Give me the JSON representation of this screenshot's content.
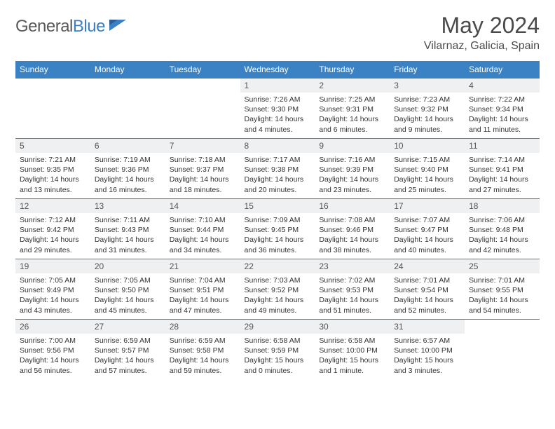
{
  "logo": {
    "part1": "General",
    "part2": "Blue"
  },
  "title": "May 2024",
  "location": "Vilarnaz, Galicia, Spain",
  "colors": {
    "header_bg": "#3b82c4",
    "header_text": "#ffffff",
    "daynum_bg": "#eef0f2",
    "border": "#3b82c4",
    "title_color": "#4a4a4a",
    "logo_gray": "#5a5a5a",
    "logo_blue": "#3b7fc4"
  },
  "day_names": [
    "Sunday",
    "Monday",
    "Tuesday",
    "Wednesday",
    "Thursday",
    "Friday",
    "Saturday"
  ],
  "weeks": [
    [
      {
        "n": "",
        "sr": "",
        "ss": "",
        "dl": ""
      },
      {
        "n": "",
        "sr": "",
        "ss": "",
        "dl": ""
      },
      {
        "n": "",
        "sr": "",
        "ss": "",
        "dl": ""
      },
      {
        "n": "1",
        "sr": "Sunrise: 7:26 AM",
        "ss": "Sunset: 9:30 PM",
        "dl": "Daylight: 14 hours and 4 minutes."
      },
      {
        "n": "2",
        "sr": "Sunrise: 7:25 AM",
        "ss": "Sunset: 9:31 PM",
        "dl": "Daylight: 14 hours and 6 minutes."
      },
      {
        "n": "3",
        "sr": "Sunrise: 7:23 AM",
        "ss": "Sunset: 9:32 PM",
        "dl": "Daylight: 14 hours and 9 minutes."
      },
      {
        "n": "4",
        "sr": "Sunrise: 7:22 AM",
        "ss": "Sunset: 9:34 PM",
        "dl": "Daylight: 14 hours and 11 minutes."
      }
    ],
    [
      {
        "n": "5",
        "sr": "Sunrise: 7:21 AM",
        "ss": "Sunset: 9:35 PM",
        "dl": "Daylight: 14 hours and 13 minutes."
      },
      {
        "n": "6",
        "sr": "Sunrise: 7:19 AM",
        "ss": "Sunset: 9:36 PM",
        "dl": "Daylight: 14 hours and 16 minutes."
      },
      {
        "n": "7",
        "sr": "Sunrise: 7:18 AM",
        "ss": "Sunset: 9:37 PM",
        "dl": "Daylight: 14 hours and 18 minutes."
      },
      {
        "n": "8",
        "sr": "Sunrise: 7:17 AM",
        "ss": "Sunset: 9:38 PM",
        "dl": "Daylight: 14 hours and 20 minutes."
      },
      {
        "n": "9",
        "sr": "Sunrise: 7:16 AM",
        "ss": "Sunset: 9:39 PM",
        "dl": "Daylight: 14 hours and 23 minutes."
      },
      {
        "n": "10",
        "sr": "Sunrise: 7:15 AM",
        "ss": "Sunset: 9:40 PM",
        "dl": "Daylight: 14 hours and 25 minutes."
      },
      {
        "n": "11",
        "sr": "Sunrise: 7:14 AM",
        "ss": "Sunset: 9:41 PM",
        "dl": "Daylight: 14 hours and 27 minutes."
      }
    ],
    [
      {
        "n": "12",
        "sr": "Sunrise: 7:12 AM",
        "ss": "Sunset: 9:42 PM",
        "dl": "Daylight: 14 hours and 29 minutes."
      },
      {
        "n": "13",
        "sr": "Sunrise: 7:11 AM",
        "ss": "Sunset: 9:43 PM",
        "dl": "Daylight: 14 hours and 31 minutes."
      },
      {
        "n": "14",
        "sr": "Sunrise: 7:10 AM",
        "ss": "Sunset: 9:44 PM",
        "dl": "Daylight: 14 hours and 34 minutes."
      },
      {
        "n": "15",
        "sr": "Sunrise: 7:09 AM",
        "ss": "Sunset: 9:45 PM",
        "dl": "Daylight: 14 hours and 36 minutes."
      },
      {
        "n": "16",
        "sr": "Sunrise: 7:08 AM",
        "ss": "Sunset: 9:46 PM",
        "dl": "Daylight: 14 hours and 38 minutes."
      },
      {
        "n": "17",
        "sr": "Sunrise: 7:07 AM",
        "ss": "Sunset: 9:47 PM",
        "dl": "Daylight: 14 hours and 40 minutes."
      },
      {
        "n": "18",
        "sr": "Sunrise: 7:06 AM",
        "ss": "Sunset: 9:48 PM",
        "dl": "Daylight: 14 hours and 42 minutes."
      }
    ],
    [
      {
        "n": "19",
        "sr": "Sunrise: 7:05 AM",
        "ss": "Sunset: 9:49 PM",
        "dl": "Daylight: 14 hours and 43 minutes."
      },
      {
        "n": "20",
        "sr": "Sunrise: 7:05 AM",
        "ss": "Sunset: 9:50 PM",
        "dl": "Daylight: 14 hours and 45 minutes."
      },
      {
        "n": "21",
        "sr": "Sunrise: 7:04 AM",
        "ss": "Sunset: 9:51 PM",
        "dl": "Daylight: 14 hours and 47 minutes."
      },
      {
        "n": "22",
        "sr": "Sunrise: 7:03 AM",
        "ss": "Sunset: 9:52 PM",
        "dl": "Daylight: 14 hours and 49 minutes."
      },
      {
        "n": "23",
        "sr": "Sunrise: 7:02 AM",
        "ss": "Sunset: 9:53 PM",
        "dl": "Daylight: 14 hours and 51 minutes."
      },
      {
        "n": "24",
        "sr": "Sunrise: 7:01 AM",
        "ss": "Sunset: 9:54 PM",
        "dl": "Daylight: 14 hours and 52 minutes."
      },
      {
        "n": "25",
        "sr": "Sunrise: 7:01 AM",
        "ss": "Sunset: 9:55 PM",
        "dl": "Daylight: 14 hours and 54 minutes."
      }
    ],
    [
      {
        "n": "26",
        "sr": "Sunrise: 7:00 AM",
        "ss": "Sunset: 9:56 PM",
        "dl": "Daylight: 14 hours and 56 minutes."
      },
      {
        "n": "27",
        "sr": "Sunrise: 6:59 AM",
        "ss": "Sunset: 9:57 PM",
        "dl": "Daylight: 14 hours and 57 minutes."
      },
      {
        "n": "28",
        "sr": "Sunrise: 6:59 AM",
        "ss": "Sunset: 9:58 PM",
        "dl": "Daylight: 14 hours and 59 minutes."
      },
      {
        "n": "29",
        "sr": "Sunrise: 6:58 AM",
        "ss": "Sunset: 9:59 PM",
        "dl": "Daylight: 15 hours and 0 minutes."
      },
      {
        "n": "30",
        "sr": "Sunrise: 6:58 AM",
        "ss": "Sunset: 10:00 PM",
        "dl": "Daylight: 15 hours and 1 minute."
      },
      {
        "n": "31",
        "sr": "Sunrise: 6:57 AM",
        "ss": "Sunset: 10:00 PM",
        "dl": "Daylight: 15 hours and 3 minutes."
      },
      {
        "n": "",
        "sr": "",
        "ss": "",
        "dl": ""
      }
    ]
  ]
}
